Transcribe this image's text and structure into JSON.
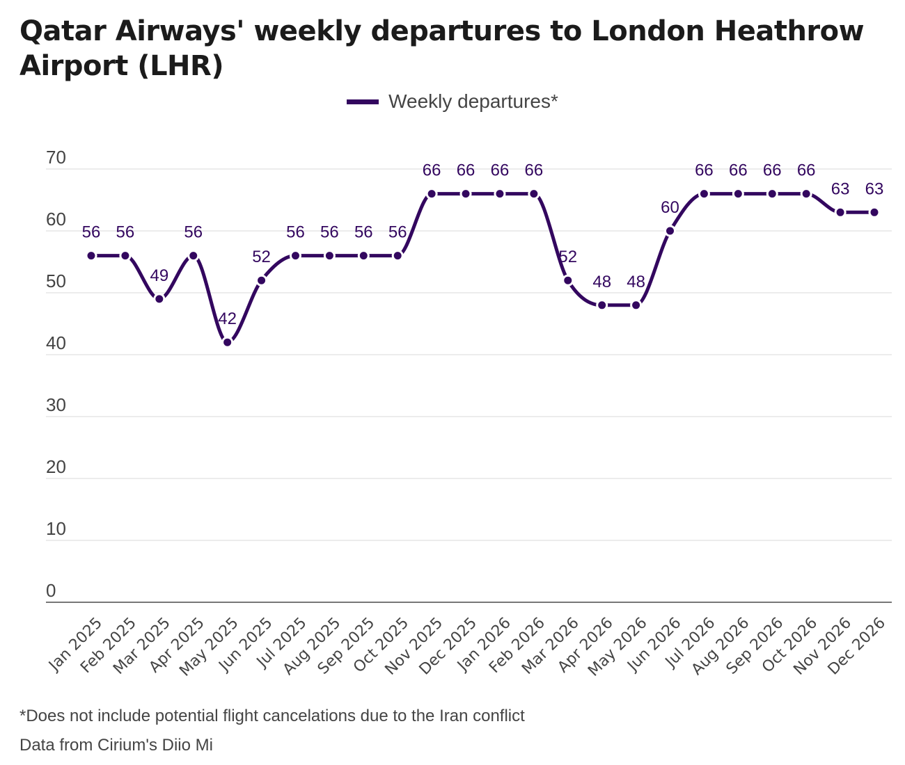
{
  "colors": {
    "series": "#33075f",
    "grid": "#e5e5e5",
    "axis": "#777777",
    "tick_text": "#444444",
    "title": "#1b1b1b"
  },
  "chart_data": {
    "type": "line",
    "title": "Qatar Airways' weekly departures to London Heathrow Airport (LHR)",
    "xlabel": "",
    "ylabel": "",
    "ylim": [
      0,
      70
    ],
    "yticks": [
      0,
      10,
      20,
      30,
      40,
      50,
      60,
      70
    ],
    "grid": true,
    "legend_position": "top-center",
    "categories": [
      "Jan 2025",
      "Feb 2025",
      "Mar 2025",
      "Apr 2025",
      "May 2025",
      "Jun 2025",
      "Jul 2025",
      "Aug 2025",
      "Sep 2025",
      "Oct 2025",
      "Nov 2025",
      "Dec 2025",
      "Jan 2026",
      "Feb 2026",
      "Mar 2026",
      "Apr 2026",
      "May 2026",
      "Jun 2026",
      "Jul 2026",
      "Aug 2026",
      "Sep 2026",
      "Oct 2026",
      "Nov 2026",
      "Dec 2026"
    ],
    "series": [
      {
        "name": "Weekly departures*",
        "values": [
          56,
          56,
          49,
          56,
          42,
          52,
          56,
          56,
          56,
          56,
          66,
          66,
          66,
          66,
          52,
          48,
          48,
          60,
          66,
          66,
          66,
          66,
          63,
          63
        ]
      }
    ],
    "data_labels": true
  },
  "footnotes": {
    "note": "*Does not include potential flight cancelations due to the Iran conflict",
    "source": "Data from Cirium's Diio Mi"
  }
}
